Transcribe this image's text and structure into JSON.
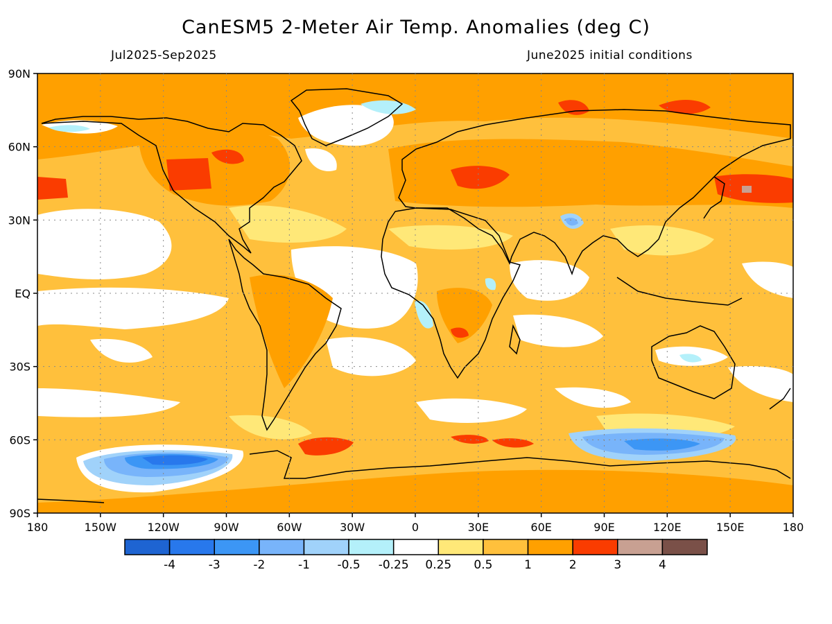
{
  "header": {
    "title": "CanESM5 2-Meter Air Temp. Anomalies (deg C)",
    "period": "Jul2025-Sep2025",
    "initial_conditions": "June2025 initial conditions"
  },
  "map": {
    "lat_labels": [
      "90N",
      "60N",
      "30N",
      "EQ",
      "30S",
      "60S",
      "90S"
    ],
    "lat_values": [
      90,
      60,
      30,
      0,
      -30,
      -60,
      -90
    ],
    "lon_labels": [
      "180",
      "150W",
      "120W",
      "90W",
      "60W",
      "30W",
      "0",
      "30E",
      "60E",
      "90E",
      "120E",
      "150E",
      "180"
    ],
    "lon_values": [
      -180,
      -150,
      -120,
      -90,
      -60,
      -30,
      0,
      30,
      60,
      90,
      120,
      150,
      180
    ]
  },
  "colorbar": {
    "colors": [
      "#1e64d2",
      "#2878ec",
      "#3c96f5",
      "#78b4fa",
      "#a0d2fa",
      "#b4f0fa",
      "#ffffff",
      "#ffe878",
      "#ffc03c",
      "#ffa000",
      "#fa3c00",
      "#c8a092",
      "#7a5048"
    ],
    "labels": [
      "-4",
      "-3",
      "-2",
      "-1",
      "-0.5",
      "-0.25",
      "0.25",
      "0.5",
      "1",
      "2",
      "3",
      "4"
    ]
  }
}
